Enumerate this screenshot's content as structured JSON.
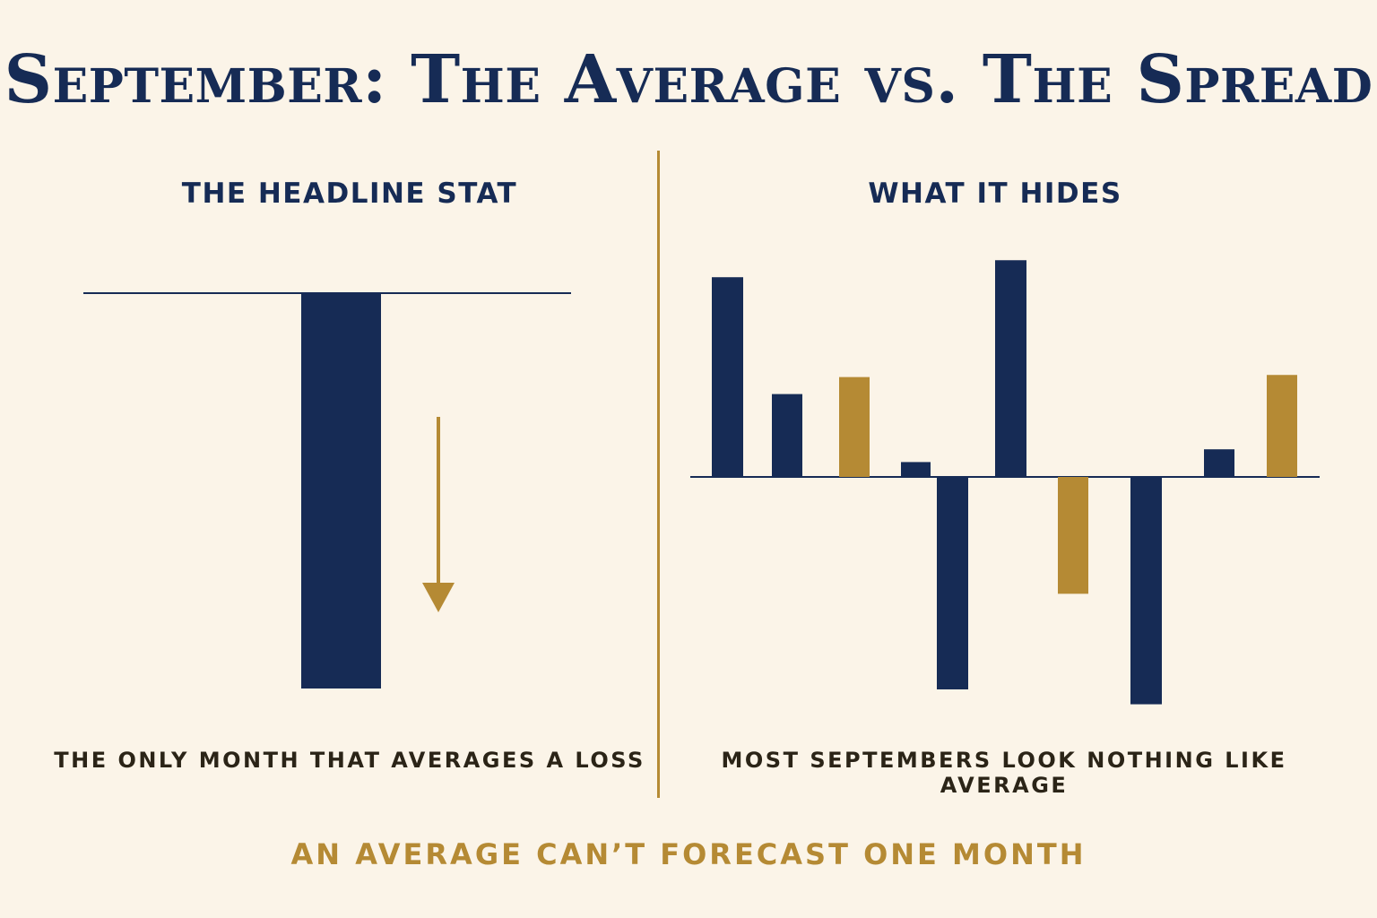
{
  "title": "September: The Average vs. The Spread",
  "footer": "AN AVERAGE CAN’T FORECAST ONE MONTH",
  "colors": {
    "navy": "#162b55",
    "gold": "#b58a34",
    "caption": "#2b2417",
    "background": "#fbf4e8"
  },
  "chart_data": [
    {
      "type": "bar",
      "title": "THE HEADLINE STAT",
      "caption": "THE ONLY MONTH THAT AVERAGES A LOSS",
      "categories": [
        ""
      ],
      "values": [
        -1
      ],
      "ylim": [
        -1,
        0
      ],
      "grid": false,
      "legend": "none",
      "annotation": "down-arrow-icon"
    },
    {
      "type": "bar",
      "title": "WHAT IT HIDES",
      "caption": "MOST SEPTEMBERS LOOK NOTHING LIKE AVERAGE",
      "categories": [
        "",
        "",
        "",
        "",
        "",
        "",
        "",
        "",
        "",
        ""
      ],
      "values": [
        0.94,
        0.39,
        0.47,
        0.07,
        -1.0,
        1.02,
        -0.55,
        -1.07,
        0.13,
        0.48
      ],
      "bar_colors": [
        "navy",
        "navy",
        "gold",
        "navy",
        "navy",
        "navy",
        "gold",
        "navy",
        "navy",
        "gold"
      ],
      "ylim": [
        -1.2,
        1.2
      ],
      "grid": false,
      "legend": "none"
    }
  ]
}
